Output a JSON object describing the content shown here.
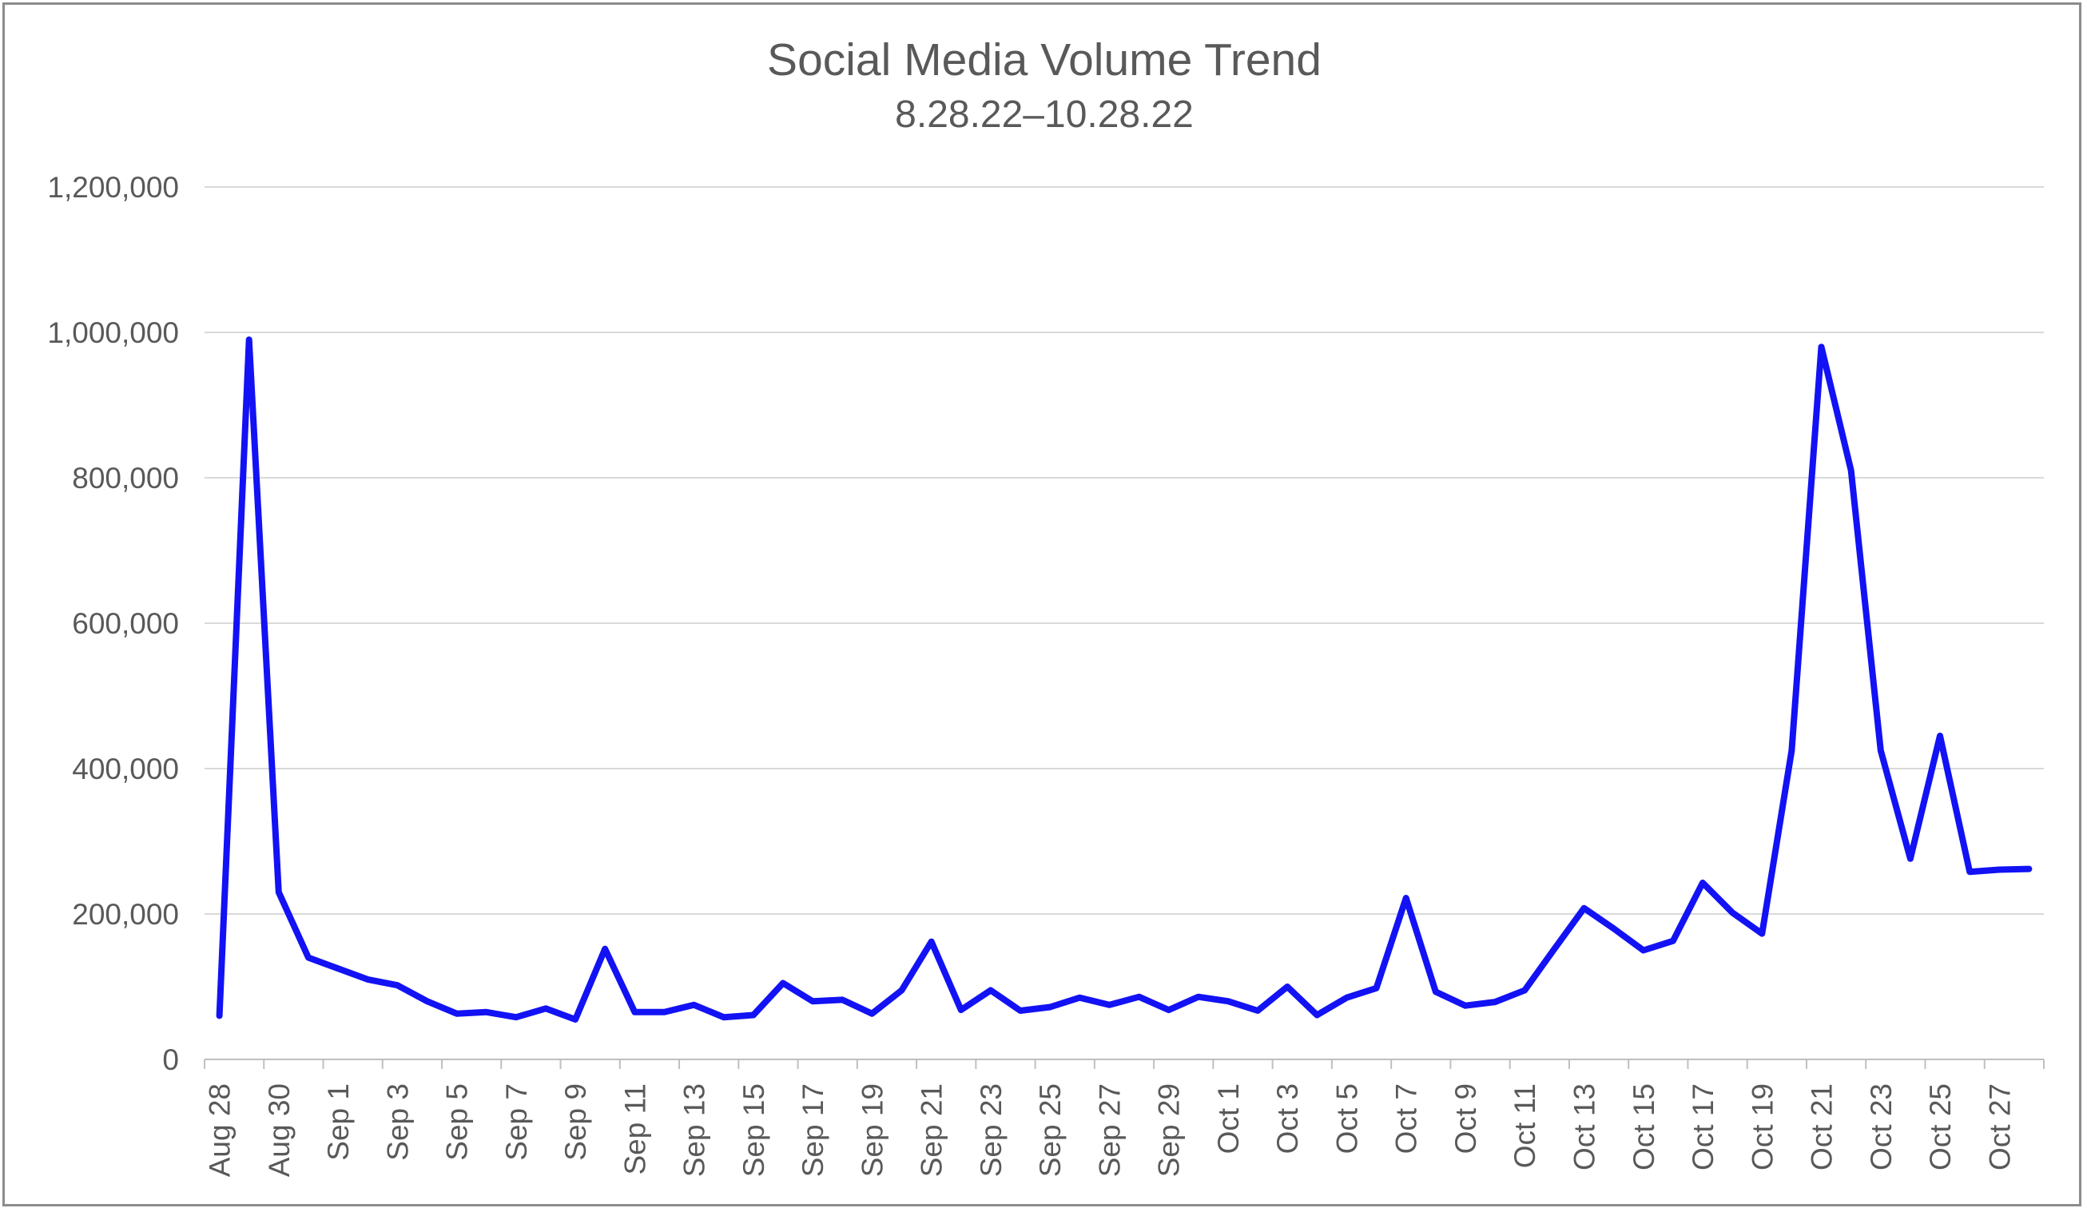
{
  "chart_data": {
    "type": "line",
    "title": "Social Media Volume Trend",
    "subtitle": "8.28.22–10.28.22",
    "xlabel": "",
    "ylabel": "",
    "ylim": [
      0,
      1200000
    ],
    "yticks": [
      "0",
      "200,000",
      "400,000",
      "600,000",
      "800,000",
      "1,000,000",
      "1,200,000"
    ],
    "x_tick_labels": [
      "Aug 28",
      "Aug 30",
      "Sep 1",
      "Sep 3",
      "Sep 5",
      "Sep 7",
      "Sep 9",
      "Sep 11",
      "Sep 13",
      "Sep 15",
      "Sep 17",
      "Sep 19",
      "Sep 21",
      "Sep 23",
      "Sep 25",
      "Sep 27",
      "Sep 29",
      "Oct 1",
      "Oct 3",
      "Oct 5",
      "Oct 7",
      "Oct 9",
      "Oct 11",
      "Oct 13",
      "Oct 15",
      "Oct 17",
      "Oct 19",
      "Oct 21",
      "Oct 23",
      "Oct 25",
      "Oct 27"
    ],
    "x": [
      "Aug 28",
      "Aug 29",
      "Aug 30",
      "Aug 31",
      "Sep 1",
      "Sep 2",
      "Sep 3",
      "Sep 4",
      "Sep 5",
      "Sep 6",
      "Sep 7",
      "Sep 8",
      "Sep 9",
      "Sep 10",
      "Sep 11",
      "Sep 12",
      "Sep 13",
      "Sep 14",
      "Sep 15",
      "Sep 16",
      "Sep 17",
      "Sep 18",
      "Sep 19",
      "Sep 20",
      "Sep 21",
      "Sep 22",
      "Sep 23",
      "Sep 24",
      "Sep 25",
      "Sep 26",
      "Sep 27",
      "Sep 28",
      "Sep 29",
      "Sep 30",
      "Oct 1",
      "Oct 2",
      "Oct 3",
      "Oct 4",
      "Oct 5",
      "Oct 6",
      "Oct 7",
      "Oct 8",
      "Oct 9",
      "Oct 10",
      "Oct 11",
      "Oct 12",
      "Oct 13",
      "Oct 14",
      "Oct 15",
      "Oct 16",
      "Oct 17",
      "Oct 18",
      "Oct 19",
      "Oct 20",
      "Oct 21",
      "Oct 22",
      "Oct 23",
      "Oct 24",
      "Oct 25",
      "Oct 26",
      "Oct 27",
      "Oct 28"
    ],
    "series": [
      {
        "color": "#1212f5",
        "values": [
          60000,
          990000,
          230000,
          140000,
          125000,
          110000,
          102000,
          80000,
          63000,
          65000,
          58000,
          70000,
          55000,
          152000,
          65000,
          65000,
          75000,
          58000,
          61000,
          105000,
          80000,
          82000,
          63000,
          95000,
          162000,
          68000,
          95000,
          67000,
          72000,
          85000,
          75000,
          86000,
          68000,
          86000,
          80000,
          67000,
          100000,
          61000,
          85000,
          98000,
          222000,
          93000,
          74000,
          79000,
          95000,
          152000,
          208000,
          180000,
          150000,
          163000,
          243000,
          202000,
          173000,
          425000,
          980000,
          810000,
          425000,
          276000,
          445000,
          258000,
          261000,
          262000
        ]
      }
    ],
    "grid": true,
    "legend": "none"
  }
}
